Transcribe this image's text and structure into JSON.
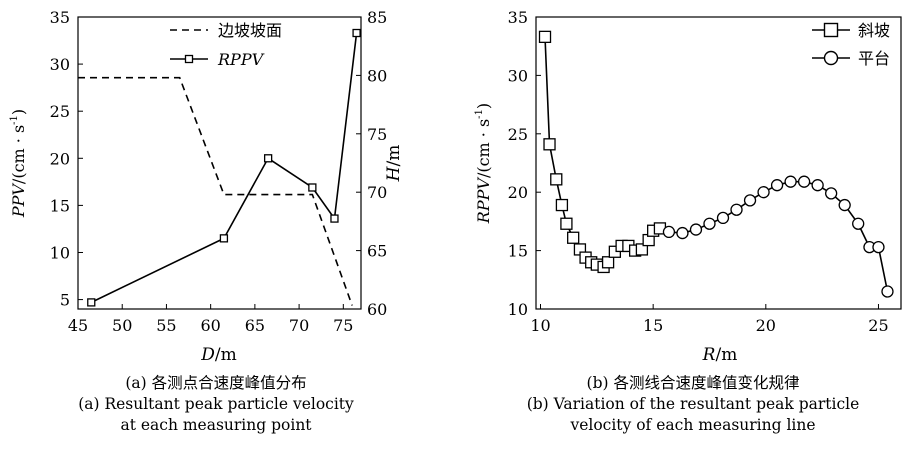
{
  "chart_data": [
    {
      "type": "line",
      "xlabel_main": "D",
      "xlabel_unit": "/m",
      "ylabel_left_main": "PPV",
      "ylabel_left_unit": "/(cm · s",
      "ylabel_left_sup": "-1",
      "ylabel_left_close": ")",
      "ylabel_right_main": "H",
      "ylabel_right_unit": "/m",
      "xlim": [
        45,
        77
      ],
      "ylim_left": [
        4,
        35
      ],
      "ylim_right": [
        60,
        85
      ],
      "x_ticks": [
        45,
        50,
        55,
        60,
        65,
        70,
        75
      ],
      "y_left_ticks": [
        5,
        10,
        15,
        20,
        25,
        30,
        35
      ],
      "y_right_ticks": [
        60,
        65,
        70,
        75,
        80,
        85
      ],
      "legend_position": "top-right",
      "series": [
        {
          "name": "边坡坡面",
          "axis": "right",
          "style": "dashed",
          "x": [
            45,
            56.5,
            61.5,
            71.5,
            76
          ],
          "y": [
            79.8,
            79.8,
            69.8,
            69.8,
            60.3
          ]
        },
        {
          "name": "RPPV",
          "axis": "left",
          "style": "solid-square",
          "x": [
            46.5,
            61.5,
            66.5,
            71.5,
            74,
            76.5
          ],
          "y": [
            4.7,
            11.5,
            20.0,
            16.9,
            13.6,
            33.3
          ]
        }
      ],
      "caption_cn": "(a) 各测点合速度峰值分布",
      "caption_en_line1": "(a) Resultant peak particle velocity",
      "caption_en_line2": "at each measuring point"
    },
    {
      "type": "line",
      "xlabel_main": "R",
      "xlabel_unit": "/m",
      "ylabel_main": "RPPV",
      "ylabel_unit": "/(cm · s",
      "ylabel_sup": "-1",
      "ylabel_close": ")",
      "xlim": [
        9.8,
        26
      ],
      "ylim": [
        10,
        35
      ],
      "x_ticks": [
        10,
        15,
        20,
        25
      ],
      "y_ticks": [
        10,
        15,
        20,
        25,
        30,
        35
      ],
      "legend_position": "top-right",
      "series": [
        {
          "name": "斜坡",
          "marker": "square",
          "x": [
            10.2,
            10.4,
            10.7,
            10.95,
            11.15,
            11.45,
            11.75,
            12.0,
            12.25,
            12.5,
            12.8,
            13.0,
            13.3,
            13.6,
            13.9,
            14.2,
            14.5,
            14.8,
            15.0,
            15.3
          ],
          "y": [
            33.3,
            24.1,
            21.1,
            18.9,
            17.3,
            16.1,
            15.1,
            14.4,
            14.0,
            13.8,
            13.6,
            14.0,
            14.9,
            15.4,
            15.4,
            15.0,
            15.1,
            15.9,
            16.7,
            16.9
          ]
        },
        {
          "name": "平台",
          "marker": "circle",
          "x": [
            15.7,
            16.3,
            16.9,
            17.5,
            18.1,
            18.7,
            19.3,
            19.9,
            20.5,
            21.1,
            21.7,
            22.3,
            22.9,
            23.5,
            24.1,
            24.6,
            25.0,
            25.4
          ],
          "y": [
            16.6,
            16.5,
            16.8,
            17.3,
            17.8,
            18.5,
            19.3,
            20.0,
            20.6,
            20.9,
            20.9,
            20.6,
            19.9,
            18.9,
            17.3,
            15.3,
            15.3,
            11.5
          ]
        }
      ],
      "caption_cn": "(b) 各测线合速度峰值变化规律",
      "caption_en_line1": "(b) Variation of the resultant peak particle",
      "caption_en_line2": "velocity of each measuring line"
    }
  ]
}
